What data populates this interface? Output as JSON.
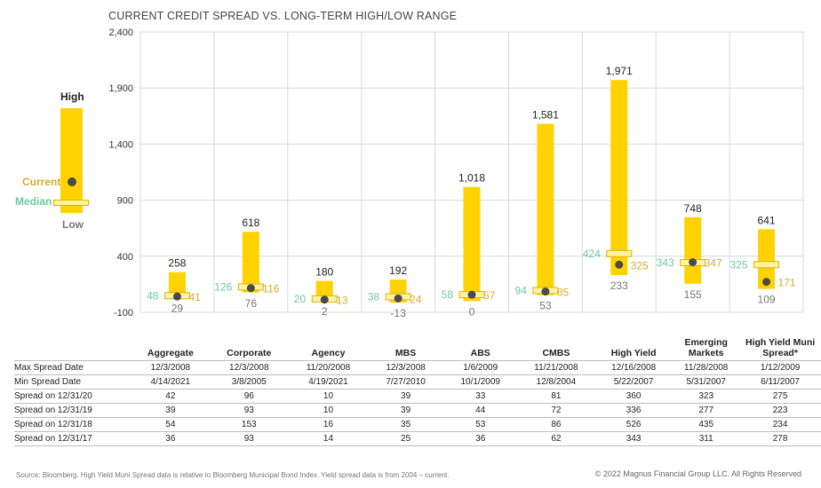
{
  "title": "CURRENT CREDIT SPREAD VS. LONG-TERM HIGH/LOW RANGE",
  "legend": {
    "high": "High",
    "current": "Current",
    "median": "Median",
    "low": "Low"
  },
  "colors": {
    "bar": "#FFD200",
    "median_label": "#6DC8A0",
    "current_label": "#D4AC2B",
    "low_label": "#777777",
    "dot": "#4a4a4a",
    "grid": "#d9d9d9"
  },
  "chart_data": {
    "type": "bar",
    "subtype": "range",
    "ylim": [
      -100,
      2400
    ],
    "yticks": [
      "-100",
      "400",
      "900",
      "1,400",
      "1,900",
      "2,400"
    ],
    "categories": [
      "Aggregate",
      "Corporate",
      "Agency",
      "MBS",
      "ABS",
      "CMBS",
      "High Yield",
      "Emerging Markets",
      "High Yield Muni Spread*"
    ],
    "high": [
      258,
      618,
      180,
      192,
      1018,
      1581,
      1971,
      748,
      641
    ],
    "high_labels": [
      "258",
      "618",
      "180",
      "192",
      "1,018",
      "1,581",
      "1,971",
      "748",
      "641"
    ],
    "low": [
      29,
      76,
      2,
      -13,
      0,
      53,
      233,
      155,
      109
    ],
    "low_labels": [
      "29",
      "76",
      "2",
      "-13",
      "0",
      "53",
      "233",
      "155",
      "109"
    ],
    "median": [
      48,
      126,
      20,
      38,
      58,
      94,
      424,
      343,
      325
    ],
    "median_labels": [
      "48",
      "126",
      "20",
      "38",
      "58",
      "94",
      "424",
      "343",
      "325"
    ],
    "current": [
      41,
      116,
      13,
      24,
      57,
      85,
      325,
      347,
      171
    ],
    "current_labels": [
      "41",
      "116",
      "13",
      "24",
      "57",
      "85",
      "325",
      "347",
      "171"
    ],
    "grid": true
  },
  "table": {
    "columns": [
      "Aggregate",
      "Corporate",
      "Agency",
      "MBS",
      "ABS",
      "CMBS",
      "High Yield",
      "Emerging Markets",
      "High Yield Muni Spread*"
    ],
    "rows": [
      {
        "label": "Max Spread Date",
        "values": [
          "12/3/2008",
          "12/3/2008",
          "11/20/2008",
          "12/3/2008",
          "1/6/2009",
          "11/21/2008",
          "12/16/2008",
          "11/28/2008",
          "1/12/2009"
        ]
      },
      {
        "label": "Min Spread Date",
        "values": [
          "4/14/2021",
          "3/8/2005",
          "4/19/2021",
          "7/27/2010",
          "10/1/2009",
          "12/8/2004",
          "5/22/2007",
          "5/31/2007",
          "6/11/2007"
        ]
      },
      {
        "label": "Spread on 12/31/20",
        "values": [
          "42",
          "96",
          "10",
          "39",
          "33",
          "81",
          "360",
          "323",
          "275"
        ]
      },
      {
        "label": "Spread on 12/31/19",
        "values": [
          "39",
          "93",
          "10",
          "39",
          "44",
          "72",
          "336",
          "277",
          "223"
        ]
      },
      {
        "label": "Spread on 12/31/18",
        "values": [
          "54",
          "153",
          "16",
          "35",
          "53",
          "86",
          "526",
          "435",
          "234"
        ]
      },
      {
        "label": "Spread on 12/31/17",
        "values": [
          "36",
          "93",
          "14",
          "25",
          "36",
          "62",
          "343",
          "311",
          "278"
        ]
      }
    ]
  },
  "footer": {
    "source": "Source: Bloomberg. High Yield Muni Spread data is relative to Bloomberg Municipal Bond Index. Yield spread data is from 2004 – current.",
    "copyright": "© 2022 Magnus Financial Group LLC. All Rights Reserved"
  }
}
